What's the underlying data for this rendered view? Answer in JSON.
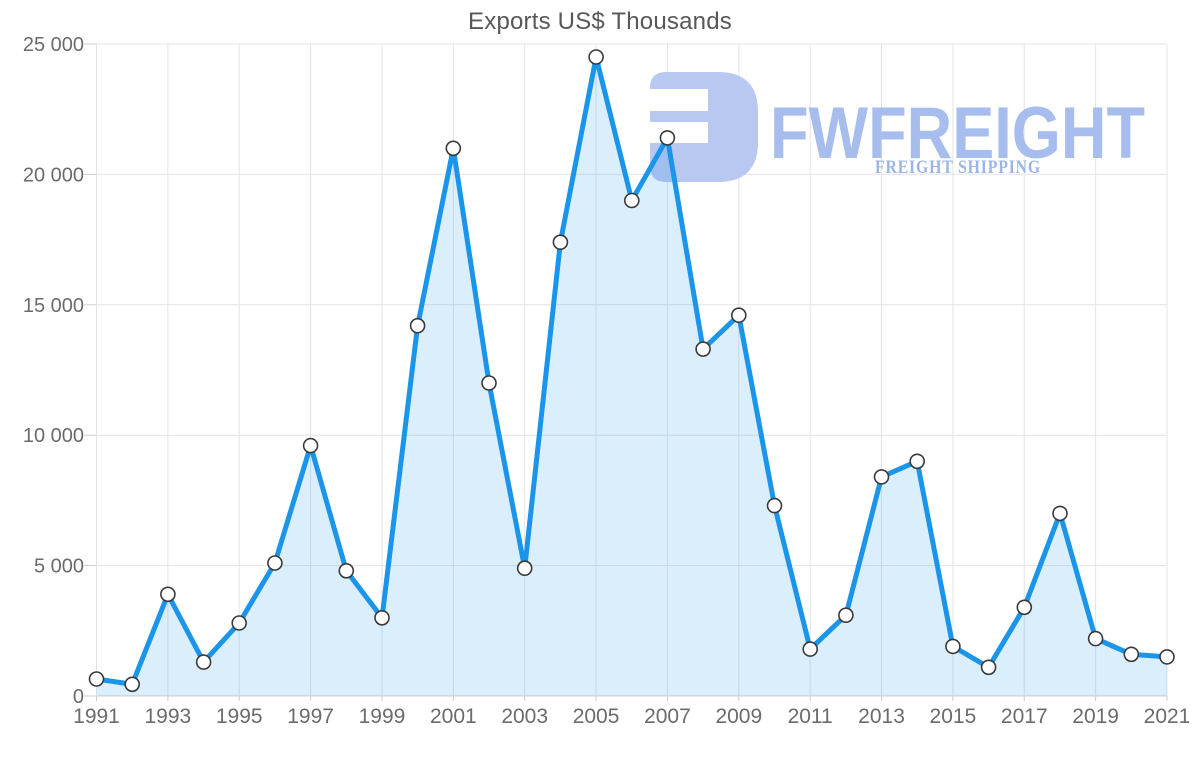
{
  "title": "Exports US$ Thousands",
  "watermark": {
    "brand": "FWFREIGHT",
    "tagline": "FREIGHT SHIPPING",
    "mark_color": "#b9c8f1",
    "brand_color": "#a6bdee",
    "tagline_color": "#9bb5e7"
  },
  "colors": {
    "line": "#1b95ea",
    "area_fill": "#1e96ed",
    "area_opacity": 0.16,
    "marker_fill": "#ffffff",
    "marker_stroke": "#3a3a3a",
    "gridline": "#e4e4e4",
    "axis_line": "#cfcfcf",
    "tick_mark": "#cccccc",
    "title_text": "#58585a",
    "tick_text": "#6b6b6b"
  },
  "chart_data": {
    "type": "area",
    "title": "Exports US$ Thousands",
    "x": [
      1991,
      1992,
      1993,
      1994,
      1995,
      1996,
      1997,
      1998,
      1999,
      2000,
      2001,
      2002,
      2003,
      2004,
      2005,
      2006,
      2007,
      2008,
      2009,
      2010,
      2011,
      2012,
      2013,
      2014,
      2015,
      2016,
      2017,
      2018,
      2019,
      2020,
      2021
    ],
    "values": [
      650,
      450,
      3900,
      1300,
      2800,
      5100,
      9600,
      4800,
      3000,
      14200,
      21000,
      12000,
      4900,
      17400,
      24500,
      19000,
      21400,
      13300,
      14600,
      7300,
      1800,
      3100,
      8400,
      9000,
      1900,
      1100,
      3400,
      7000,
      2200,
      1600,
      1500
    ],
    "xlabel": "",
    "ylabel": "",
    "ylim": [
      0,
      25000
    ],
    "ytick_values": [
      0,
      5000,
      10000,
      15000,
      20000,
      25000
    ],
    "ytick_labels": [
      "0",
      "5 000",
      "10 000",
      "15 000",
      "20 000",
      "25 000"
    ],
    "xtick_labels": [
      "1991",
      "1993",
      "1995",
      "1997",
      "1999",
      "2001",
      "2003",
      "2005",
      "2007",
      "2009",
      "2011",
      "2013",
      "2015",
      "2017",
      "2019",
      "2021"
    ],
    "grid": true,
    "legend": false,
    "marker": "circle"
  }
}
